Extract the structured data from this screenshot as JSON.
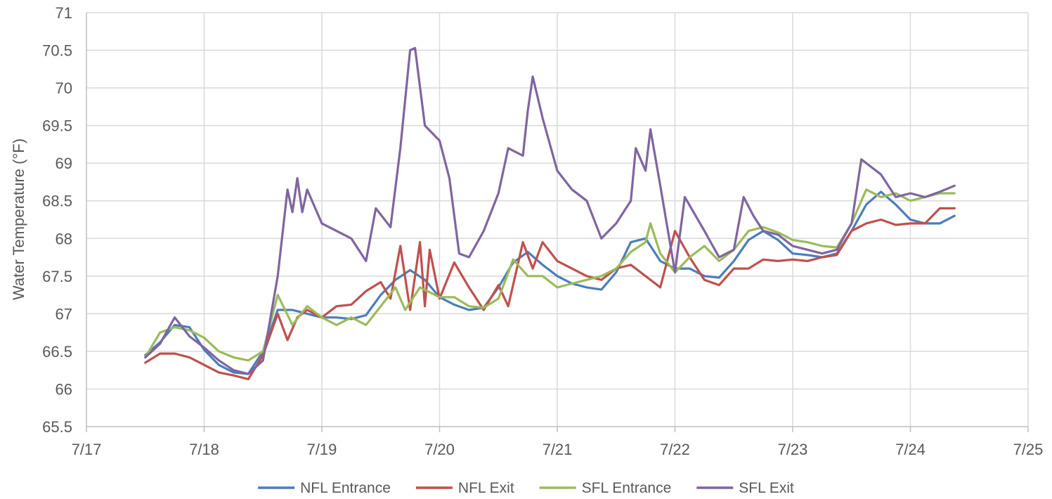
{
  "chart_data": {
    "type": "line",
    "ylabel": "Water Temperature (°F)",
    "xlabel": "",
    "x_ticks": [
      "7/17",
      "7/18",
      "7/19",
      "7/20",
      "7/21",
      "7/22",
      "7/23",
      "7/24",
      "7/25"
    ],
    "y_ticks": [
      "65.5",
      "66",
      "66.5",
      "67",
      "67.5",
      "68",
      "68.5",
      "69",
      "69.5",
      "70",
      "70.5",
      "71"
    ],
    "xlim": [
      "7/17",
      "7/25"
    ],
    "ylim": [
      65.5,
      71
    ],
    "grid": true,
    "legend_position": "bottom",
    "series": [
      {
        "name": "NFL Entrance",
        "color": "#4a7ebb",
        "points": [
          [
            "7/17 12:00",
            66.45
          ],
          [
            "7/17 15:00",
            66.62
          ],
          [
            "7/17 18:00",
            66.85
          ],
          [
            "7/17 21:00",
            66.82
          ],
          [
            "7/18 00:00",
            66.52
          ],
          [
            "7/18 03:00",
            66.32
          ],
          [
            "7/18 06:00",
            66.22
          ],
          [
            "7/18 09:00",
            66.2
          ],
          [
            "7/18 12:00",
            66.5
          ],
          [
            "7/18 15:00",
            67.05
          ],
          [
            "7/18 18:00",
            67.05
          ],
          [
            "7/18 21:00",
            67.0
          ],
          [
            "7/19 00:00",
            66.95
          ],
          [
            "7/19 03:00",
            66.95
          ],
          [
            "7/19 06:00",
            66.93
          ],
          [
            "7/19 09:00",
            66.98
          ],
          [
            "7/19 12:00",
            67.25
          ],
          [
            "7/19 15:00",
            67.45
          ],
          [
            "7/19 18:00",
            67.58
          ],
          [
            "7/19 21:00",
            67.45
          ],
          [
            "7/20 00:00",
            67.22
          ],
          [
            "7/20 03:00",
            67.12
          ],
          [
            "7/20 06:00",
            67.05
          ],
          [
            "7/20 09:00",
            67.08
          ],
          [
            "7/20 12:00",
            67.35
          ],
          [
            "7/20 15:00",
            67.68
          ],
          [
            "7/20 18:00",
            67.82
          ],
          [
            "7/20 21:00",
            67.65
          ],
          [
            "7/21 00:00",
            67.5
          ],
          [
            "7/21 03:00",
            67.4
          ],
          [
            "7/21 06:00",
            67.35
          ],
          [
            "7/21 09:00",
            67.32
          ],
          [
            "7/21 12:00",
            67.55
          ],
          [
            "7/21 15:00",
            67.95
          ],
          [
            "7/21 18:00",
            68.0
          ],
          [
            "7/21 21:00",
            67.7
          ],
          [
            "7/22 00:00",
            67.6
          ],
          [
            "7/22 03:00",
            67.6
          ],
          [
            "7/22 06:00",
            67.5
          ],
          [
            "7/22 09:00",
            67.48
          ],
          [
            "7/22 12:00",
            67.7
          ],
          [
            "7/22 15:00",
            67.98
          ],
          [
            "7/22 18:00",
            68.1
          ],
          [
            "7/22 21:00",
            67.98
          ],
          [
            "7/23 00:00",
            67.8
          ],
          [
            "7/23 03:00",
            67.78
          ],
          [
            "7/23 06:00",
            67.75
          ],
          [
            "7/23 09:00",
            67.8
          ],
          [
            "7/23 12:00",
            68.1
          ],
          [
            "7/23 15:00",
            68.45
          ],
          [
            "7/23 18:00",
            68.62
          ],
          [
            "7/23 21:00",
            68.45
          ],
          [
            "7/24 00:00",
            68.25
          ],
          [
            "7/24 03:00",
            68.2
          ],
          [
            "7/24 06:00",
            68.2
          ],
          [
            "7/24 09:00",
            68.3
          ]
        ]
      },
      {
        "name": "NFL Exit",
        "color": "#c0504d",
        "points": [
          [
            "7/17 12:00",
            66.35
          ],
          [
            "7/17 15:00",
            66.47
          ],
          [
            "7/17 18:00",
            66.47
          ],
          [
            "7/17 21:00",
            66.42
          ],
          [
            "7/18 00:00",
            66.32
          ],
          [
            "7/18 03:00",
            66.22
          ],
          [
            "7/18 06:00",
            66.18
          ],
          [
            "7/18 09:00",
            66.13
          ],
          [
            "7/18 12:00",
            66.45
          ],
          [
            "7/18 15:00",
            67.0
          ],
          [
            "7/18 17:00",
            66.65
          ],
          [
            "7/18 19:00",
            66.95
          ],
          [
            "7/18 21:00",
            67.05
          ],
          [
            "7/19 00:00",
            66.95
          ],
          [
            "7/19 03:00",
            67.1
          ],
          [
            "7/19 06:00",
            67.12
          ],
          [
            "7/19 09:00",
            67.3
          ],
          [
            "7/19 12:00",
            67.42
          ],
          [
            "7/19 14:00",
            67.2
          ],
          [
            "7/19 16:00",
            67.9
          ],
          [
            "7/19 18:00",
            67.05
          ],
          [
            "7/19 20:00",
            67.95
          ],
          [
            "7/19 21:00",
            67.1
          ],
          [
            "7/19 22:00",
            67.85
          ],
          [
            "7/20 00:00",
            67.2
          ],
          [
            "7/20 03:00",
            67.68
          ],
          [
            "7/20 06:00",
            67.35
          ],
          [
            "7/20 09:00",
            67.05
          ],
          [
            "7/20 12:00",
            67.38
          ],
          [
            "7/20 14:00",
            67.1
          ],
          [
            "7/20 17:00",
            67.95
          ],
          [
            "7/20 19:00",
            67.6
          ],
          [
            "7/20 21:00",
            67.95
          ],
          [
            "7/21 00:00",
            67.7
          ],
          [
            "7/21 03:00",
            67.6
          ],
          [
            "7/21 06:00",
            67.5
          ],
          [
            "7/21 09:00",
            67.45
          ],
          [
            "7/21 12:00",
            67.6
          ],
          [
            "7/21 15:00",
            67.65
          ],
          [
            "7/21 18:00",
            67.5
          ],
          [
            "7/21 21:00",
            67.35
          ],
          [
            "7/22 00:00",
            68.1
          ],
          [
            "7/22 03:00",
            67.75
          ],
          [
            "7/22 06:00",
            67.45
          ],
          [
            "7/22 09:00",
            67.38
          ],
          [
            "7/22 12:00",
            67.6
          ],
          [
            "7/22 15:00",
            67.6
          ],
          [
            "7/22 18:00",
            67.72
          ],
          [
            "7/22 21:00",
            67.7
          ],
          [
            "7/23 00:00",
            67.72
          ],
          [
            "7/23 03:00",
            67.7
          ],
          [
            "7/23 06:00",
            67.75
          ],
          [
            "7/23 09:00",
            67.78
          ],
          [
            "7/23 12:00",
            68.1
          ],
          [
            "7/23 15:00",
            68.2
          ],
          [
            "7/23 18:00",
            68.25
          ],
          [
            "7/23 21:00",
            68.18
          ],
          [
            "7/24 00:00",
            68.2
          ],
          [
            "7/24 03:00",
            68.2
          ],
          [
            "7/24 06:00",
            68.4
          ],
          [
            "7/24 09:00",
            68.4
          ]
        ]
      },
      {
        "name": "SFL Entrance",
        "color": "#9bbb59",
        "points": [
          [
            "7/17 12:00",
            66.42
          ],
          [
            "7/17 15:00",
            66.75
          ],
          [
            "7/17 18:00",
            66.82
          ],
          [
            "7/17 21:00",
            66.78
          ],
          [
            "7/18 00:00",
            66.68
          ],
          [
            "7/18 03:00",
            66.5
          ],
          [
            "7/18 06:00",
            66.42
          ],
          [
            "7/18 09:00",
            66.38
          ],
          [
            "7/18 12:00",
            66.5
          ],
          [
            "7/18 15:00",
            67.25
          ],
          [
            "7/18 18:00",
            66.85
          ],
          [
            "7/18 21:00",
            67.1
          ],
          [
            "7/19 00:00",
            66.95
          ],
          [
            "7/19 03:00",
            66.85
          ],
          [
            "7/19 06:00",
            66.95
          ],
          [
            "7/19 09:00",
            66.85
          ],
          [
            "7/19 12:00",
            67.1
          ],
          [
            "7/19 15:00",
            67.35
          ],
          [
            "7/19 17:00",
            67.05
          ],
          [
            "7/19 20:00",
            67.35
          ],
          [
            "7/20 00:00",
            67.22
          ],
          [
            "7/20 03:00",
            67.22
          ],
          [
            "7/20 06:00",
            67.1
          ],
          [
            "7/20 09:00",
            67.08
          ],
          [
            "7/20 12:00",
            67.2
          ],
          [
            "7/20 15:00",
            67.72
          ],
          [
            "7/20 18:00",
            67.5
          ],
          [
            "7/20 21:00",
            67.5
          ],
          [
            "7/21 00:00",
            67.35
          ],
          [
            "7/21 03:00",
            67.4
          ],
          [
            "7/21 06:00",
            67.45
          ],
          [
            "7/21 09:00",
            67.5
          ],
          [
            "7/21 12:00",
            67.6
          ],
          [
            "7/21 15:00",
            67.82
          ],
          [
            "7/21 18:00",
            67.95
          ],
          [
            "7/21 19:00",
            68.2
          ],
          [
            "7/21 21:00",
            67.8
          ],
          [
            "7/22 00:00",
            67.55
          ],
          [
            "7/22 03:00",
            67.75
          ],
          [
            "7/22 06:00",
            67.9
          ],
          [
            "7/22 09:00",
            67.7
          ],
          [
            "7/22 12:00",
            67.85
          ],
          [
            "7/22 15:00",
            68.1
          ],
          [
            "7/22 18:00",
            68.15
          ],
          [
            "7/22 21:00",
            68.08
          ],
          [
            "7/23 00:00",
            67.98
          ],
          [
            "7/23 03:00",
            67.95
          ],
          [
            "7/23 06:00",
            67.9
          ],
          [
            "7/23 09:00",
            67.88
          ],
          [
            "7/23 12:00",
            68.2
          ],
          [
            "7/23 15:00",
            68.65
          ],
          [
            "7/23 18:00",
            68.55
          ],
          [
            "7/23 21:00",
            68.6
          ],
          [
            "7/24 00:00",
            68.5
          ],
          [
            "7/24 03:00",
            68.55
          ],
          [
            "7/24 06:00",
            68.6
          ],
          [
            "7/24 09:00",
            68.6
          ]
        ]
      },
      {
        "name": "SFL Exit",
        "color": "#8064a2",
        "points": [
          [
            "7/17 12:00",
            66.42
          ],
          [
            "7/17 15:00",
            66.6
          ],
          [
            "7/17 18:00",
            66.95
          ],
          [
            "7/17 21:00",
            66.7
          ],
          [
            "7/18 00:00",
            66.55
          ],
          [
            "7/18 03:00",
            66.38
          ],
          [
            "7/18 06:00",
            66.25
          ],
          [
            "7/18 09:00",
            66.2
          ],
          [
            "7/18 12:00",
            66.38
          ],
          [
            "7/18 15:00",
            67.5
          ],
          [
            "7/18 17:00",
            68.65
          ],
          [
            "7/18 18:00",
            68.35
          ],
          [
            "7/18 19:00",
            68.8
          ],
          [
            "7/18 20:00",
            68.35
          ],
          [
            "7/18 21:00",
            68.65
          ],
          [
            "7/19 00:00",
            68.2
          ],
          [
            "7/19 03:00",
            68.1
          ],
          [
            "7/19 06:00",
            68.0
          ],
          [
            "7/19 09:00",
            67.7
          ],
          [
            "7/19 11:00",
            68.4
          ],
          [
            "7/19 14:00",
            68.15
          ],
          [
            "7/19 16:00",
            69.2
          ],
          [
            "7/19 18:00",
            70.5
          ],
          [
            "7/19 19:00",
            70.53
          ],
          [
            "7/19 21:00",
            69.5
          ],
          [
            "7/20 00:00",
            69.3
          ],
          [
            "7/20 02:00",
            68.8
          ],
          [
            "7/20 04:00",
            67.8
          ],
          [
            "7/20 06:00",
            67.75
          ],
          [
            "7/20 09:00",
            68.1
          ],
          [
            "7/20 12:00",
            68.6
          ],
          [
            "7/20 14:00",
            69.2
          ],
          [
            "7/20 17:00",
            69.1
          ],
          [
            "7/20 18:00",
            69.7
          ],
          [
            "7/20 19:00",
            70.15
          ],
          [
            "7/20 21:00",
            69.6
          ],
          [
            "7/21 00:00",
            68.9
          ],
          [
            "7/21 03:00",
            68.65
          ],
          [
            "7/21 06:00",
            68.5
          ],
          [
            "7/21 09:00",
            68.0
          ],
          [
            "7/21 12:00",
            68.2
          ],
          [
            "7/21 15:00",
            68.5
          ],
          [
            "7/21 16:00",
            69.2
          ],
          [
            "7/21 18:00",
            68.9
          ],
          [
            "7/21 19:00",
            69.45
          ],
          [
            "7/21 21:00",
            68.7
          ],
          [
            "7/22 00:00",
            67.55
          ],
          [
            "7/22 02:00",
            68.55
          ],
          [
            "7/22 06:00",
            68.1
          ],
          [
            "7/22 09:00",
            67.75
          ],
          [
            "7/22 12:00",
            67.85
          ],
          [
            "7/22 14:00",
            68.55
          ],
          [
            "7/22 16:00",
            68.3
          ],
          [
            "7/22 18:00",
            68.1
          ],
          [
            "7/22 21:00",
            68.05
          ],
          [
            "7/23 00:00",
            67.9
          ],
          [
            "7/23 03:00",
            67.85
          ],
          [
            "7/23 06:00",
            67.8
          ],
          [
            "7/23 09:00",
            67.85
          ],
          [
            "7/23 12:00",
            68.2
          ],
          [
            "7/23 14:00",
            69.05
          ],
          [
            "7/23 16:00",
            68.95
          ],
          [
            "7/23 18:00",
            68.85
          ],
          [
            "7/23 21:00",
            68.55
          ],
          [
            "7/24 00:00",
            68.6
          ],
          [
            "7/24 03:00",
            68.55
          ],
          [
            "7/24 06:00",
            68.62
          ],
          [
            "7/24 09:00",
            68.7
          ]
        ]
      }
    ]
  }
}
